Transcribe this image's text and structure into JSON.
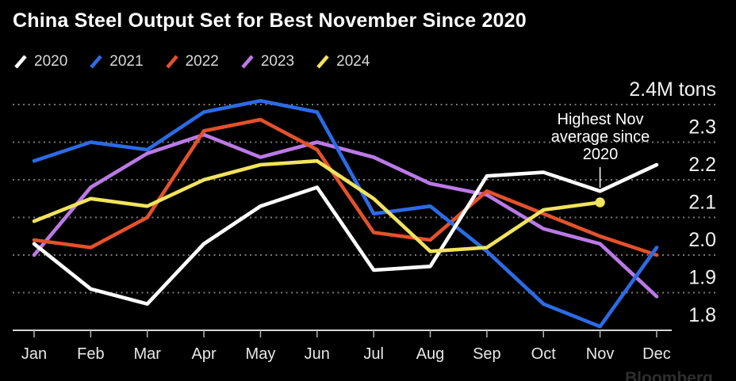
{
  "title": "China Steel Output Set for Best November Since 2020",
  "annotation": {
    "lines": [
      "Highest Nov",
      "average since",
      "2020"
    ]
  },
  "source_watermark": "Bloomberg",
  "colors": {
    "background": "#000000",
    "title_text": "#ffffff",
    "legend_text": "#d9d9d9",
    "gridline": "#787878",
    "axis_line": "#d6d6d6",
    "y_label_text": "#f2f2f2",
    "month_label_text": "#e8e8e8",
    "annotation_text": "#ffffff"
  },
  "y_axis": {
    "ticks": [
      "2.4M tons",
      "2.3",
      "2.2",
      "2.1",
      "2.0",
      "1.9",
      "1.8"
    ],
    "tick_values": [
      2.4,
      2.3,
      2.2,
      2.1,
      2.0,
      1.9,
      1.8
    ],
    "unit": "M tons"
  },
  "chart_data": {
    "type": "line",
    "title": "China Steel Output Set for Best November Since 2020",
    "x": [
      "Jan",
      "Feb",
      "Mar",
      "Apr",
      "May",
      "Jun",
      "Jul",
      "Aug",
      "Sep",
      "Oct",
      "Nov",
      "Dec"
    ],
    "ylabel": "M tons",
    "ylim": [
      1.8,
      2.4
    ],
    "grid": "dotted-horizontal",
    "legend_position": "top-left",
    "annotation": "Highest Nov average since 2020 (points to Nov 2024 value)",
    "series": [
      {
        "name": "2020",
        "color": "#ffffff",
        "values": [
          2.03,
          1.91,
          1.87,
          2.03,
          2.13,
          2.18,
          1.96,
          1.97,
          2.21,
          2.22,
          2.17,
          2.24
        ]
      },
      {
        "name": "2021",
        "color": "#2b6be6",
        "values": [
          2.25,
          2.3,
          2.28,
          2.38,
          2.41,
          2.38,
          2.11,
          2.13,
          2.01,
          1.87,
          1.81,
          2.02
        ]
      },
      {
        "name": "2022",
        "color": "#e4512b",
        "values": [
          2.04,
          2.02,
          2.1,
          2.33,
          2.36,
          2.28,
          2.06,
          2.04,
          2.17,
          2.11,
          2.05,
          2.0
        ]
      },
      {
        "name": "2023",
        "color": "#bb79e6",
        "values": [
          2.0,
          2.18,
          2.27,
          2.32,
          2.26,
          2.3,
          2.26,
          2.19,
          2.16,
          2.07,
          2.03,
          1.89
        ]
      },
      {
        "name": "2024",
        "color": "#f2e35e",
        "end_marker": true,
        "values": [
          2.09,
          2.15,
          2.13,
          2.2,
          2.24,
          2.25,
          2.15,
          2.01,
          2.02,
          2.12,
          2.14,
          null
        ]
      }
    ]
  }
}
